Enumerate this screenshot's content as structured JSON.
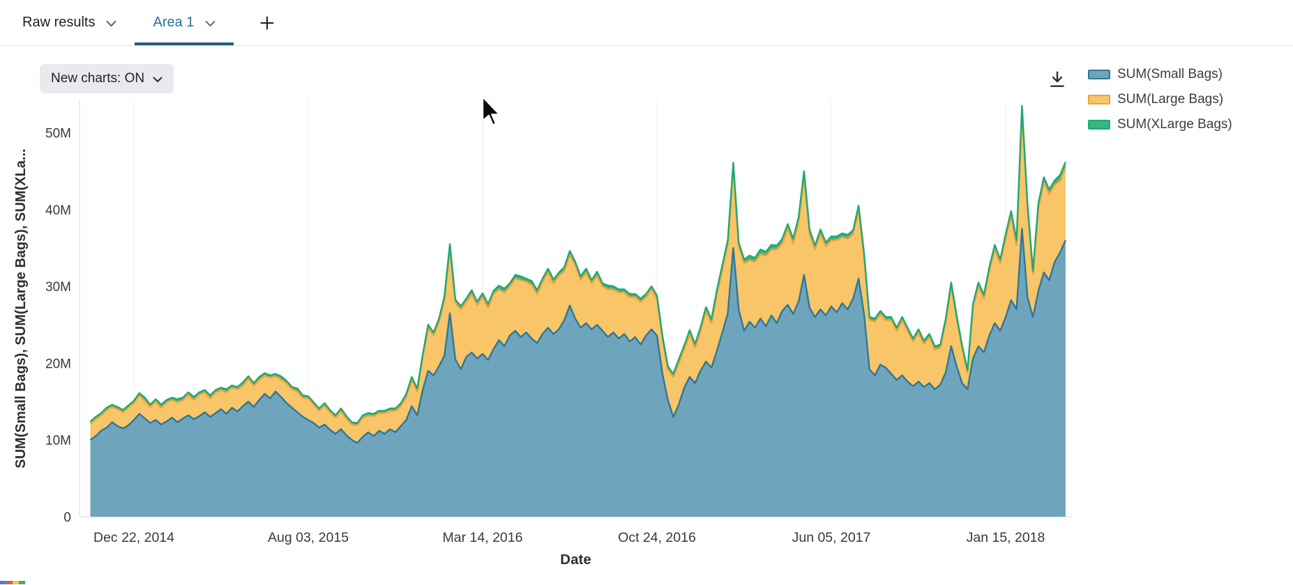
{
  "tab_bar": {
    "tabs": [
      {
        "label": "Raw results",
        "active": false
      },
      {
        "label": "Area 1",
        "active": true
      }
    ],
    "add_button": "+"
  },
  "toolbar": {
    "new_charts_label": "New charts: ON"
  },
  "icons": {
    "tab_dropdown": "chevron-down",
    "new_charts_dropdown": "chevron-down",
    "download": "download-arrow-into-tray",
    "add_tab": "plus"
  },
  "colors": {
    "active_tab_text": "#2a6da8",
    "active_tab_underline": "#1e5a8a",
    "pill_background": "#e9eaed",
    "gridline": "#ededee",
    "axis_line": "#d8d8da",
    "tick_label": "#39393b",
    "axis_title": "#2e2e30"
  },
  "artifacts": {
    "bottom_left_strip_colors": [
      "#4a7fd4",
      "#e05c4b",
      "#f5c242",
      "#3bb273"
    ]
  },
  "chart_data": {
    "type": "area",
    "stacked": true,
    "title": "",
    "xlabel": "Date",
    "ylabel": "SUM(Small Bags), SUM(Large Bags), SUM(XLa...",
    "values_unit": "millions",
    "ylim": [
      0,
      55
    ],
    "grid": {
      "vertical_at_xticks": true,
      "horizontal": false
    },
    "legend_position": "top-right",
    "yticks": [
      {
        "v": 0,
        "label": "0"
      },
      {
        "v": 10,
        "label": "10M"
      },
      {
        "v": 20,
        "label": "20M"
      },
      {
        "v": 30,
        "label": "30M"
      },
      {
        "v": 40,
        "label": "40M"
      },
      {
        "v": 50,
        "label": "50M"
      }
    ],
    "x_unit": "week_index",
    "xticks": [
      {
        "i": 8,
        "label": "Dec 22, 2014"
      },
      {
        "i": 40,
        "label": "Aug 03, 2015"
      },
      {
        "i": 72,
        "label": "Mar 14, 2016"
      },
      {
        "i": 104,
        "label": "Oct 24, 2016"
      },
      {
        "i": 136,
        "label": "Jun 05, 2017"
      },
      {
        "i": 168,
        "label": "Jan 15, 2018"
      }
    ],
    "series": [
      {
        "name": "SUM(Small Bags)",
        "fill": "#6FA5BC",
        "stroke": "#2E7796",
        "values": [
          10.0,
          10.5,
          11.2,
          11.6,
          12.3,
          11.8,
          11.5,
          11.9,
          12.6,
          13.4,
          12.8,
          12.2,
          12.6,
          12.0,
          12.4,
          12.9,
          12.3,
          12.8,
          13.2,
          12.7,
          13.1,
          13.6,
          13.0,
          13.5,
          14.0,
          13.4,
          14.2,
          13.7,
          14.4,
          15.0,
          14.3,
          15.2,
          16.0,
          15.4,
          16.3,
          15.6,
          14.8,
          14.2,
          13.6,
          13.0,
          12.6,
          12.2,
          11.6,
          12.0,
          11.3,
          10.8,
          11.4,
          10.6,
          10.0,
          9.6,
          10.4,
          11.0,
          10.5,
          11.2,
          10.8,
          11.4,
          11.0,
          11.8,
          12.6,
          14.4,
          13.2,
          16.5,
          19.0,
          18.4,
          19.6,
          21.0,
          26.5,
          20.5,
          19.2,
          20.8,
          21.4,
          20.6,
          21.2,
          20.4,
          21.8,
          23.0,
          22.2,
          23.6,
          24.2,
          23.4,
          24.0,
          23.2,
          22.6,
          23.8,
          24.6,
          23.8,
          24.4,
          25.6,
          27.5,
          25.8,
          24.6,
          25.2,
          24.4,
          25.0,
          24.2,
          23.4,
          24.0,
          23.2,
          23.8,
          22.8,
          23.4,
          22.4,
          23.6,
          24.4,
          23.6,
          18.6,
          15.2,
          13.0,
          14.6,
          16.8,
          18.2,
          17.4,
          19.0,
          20.2,
          19.4,
          21.6,
          24.0,
          26.5,
          35.0,
          27.0,
          24.2,
          25.4,
          24.6,
          25.8,
          24.8,
          26.2,
          25.2,
          26.8,
          27.6,
          26.4,
          28.0,
          31.5,
          27.2,
          26.0,
          27.0,
          26.2,
          27.4,
          26.6,
          27.8,
          27.0,
          28.4,
          31.0,
          26.4,
          19.2,
          18.4,
          19.8,
          19.4,
          18.6,
          17.8,
          18.4,
          17.6,
          17.0,
          17.6,
          16.9,
          17.4,
          16.6,
          17.2,
          18.8,
          22.2,
          19.6,
          17.4,
          16.6,
          20.6,
          22.2,
          21.4,
          23.6,
          25.2,
          24.2,
          26.0,
          28.2,
          27.0,
          37.5,
          28.6,
          26.0,
          29.4,
          31.8,
          30.8,
          33.2,
          34.4,
          36.0
        ]
      },
      {
        "name": "SUM(Large Bags)",
        "fill": "#F8C568",
        "stroke": "#ED9F40",
        "values": [
          2.1,
          2.2,
          2.0,
          2.3,
          2.0,
          2.2,
          2.1,
          2.3,
          2.2,
          2.4,
          2.3,
          2.1,
          2.4,
          2.2,
          2.5,
          2.3,
          2.6,
          2.4,
          2.7,
          2.5,
          2.8,
          2.6,
          2.4,
          2.7,
          2.5,
          2.8,
          2.6,
          2.9,
          2.7,
          3.0,
          2.8,
          2.6,
          2.4,
          2.7,
          2.0,
          2.3,
          2.6,
          2.4,
          2.7,
          2.5,
          2.8,
          2.4,
          2.2,
          2.5,
          2.3,
          2.1,
          2.4,
          2.2,
          2.0,
          2.3,
          2.5,
          2.2,
          2.6,
          2.3,
          2.7,
          2.4,
          2.8,
          2.6,
          3.0,
          3.4,
          3.1,
          4.2,
          5.6,
          5.2,
          5.8,
          7.2,
          8.5,
          7.4,
          7.8,
          7.2,
          7.6,
          7.0,
          7.4,
          6.8,
          7.2,
          6.6,
          7.0,
          6.4,
          6.8,
          7.4,
          6.6,
          7.0,
          6.4,
          6.8,
          7.2,
          6.6,
          7.0,
          6.4,
          6.6,
          7.0,
          6.2,
          6.6,
          6.0,
          6.4,
          5.8,
          6.2,
          5.6,
          6.0,
          5.4,
          5.8,
          5.2,
          5.6,
          5.0,
          5.2,
          4.8,
          4.6,
          4.0,
          5.2,
          5.4,
          5.0,
          5.6,
          4.6,
          5.2,
          6.6,
          5.8,
          7.4,
          8.2,
          9.0,
          10.5,
          8.2,
          8.8,
          8.0,
          8.6,
          8.4,
          9.2,
          8.6,
          9.6,
          8.8,
          10.0,
          9.2,
          10.4,
          12.8,
          9.6,
          8.8,
          9.8,
          9.0,
          8.6,
          9.4,
          8.6,
          9.2,
          8.4,
          9.0,
          7.6,
          6.4,
          7.0,
          6.6,
          6.2,
          7.0,
          6.4,
          7.2,
          6.6,
          5.8,
          6.4,
          5.6,
          6.0,
          5.2,
          4.8,
          6.6,
          7.8,
          6.2,
          4.6,
          2.2,
          6.6,
          7.8,
          7.0,
          8.4,
          9.6,
          8.8,
          10.2,
          11.0,
          8.4,
          15.3,
          11.6,
          5.6,
          10.8,
          11.8,
          11.2,
          10.0,
          9.4,
          9.5
        ]
      },
      {
        "name": "SUM(XLarge Bags)",
        "fill": "#35B57F",
        "stroke": "#1FA971",
        "values": [
          0.3,
          0.3,
          0.3,
          0.3,
          0.3,
          0.3,
          0.3,
          0.3,
          0.3,
          0.3,
          0.4,
          0.3,
          0.3,
          0.4,
          0.3,
          0.3,
          0.4,
          0.3,
          0.3,
          0.4,
          0.3,
          0.3,
          0.4,
          0.3,
          0.3,
          0.4,
          0.3,
          0.3,
          0.4,
          0.3,
          0.3,
          0.4,
          0.3,
          0.3,
          0.3,
          0.4,
          0.3,
          0.3,
          0.4,
          0.3,
          0.3,
          0.3,
          0.3,
          0.3,
          0.3,
          0.3,
          0.3,
          0.3,
          0.3,
          0.3,
          0.3,
          0.3,
          0.3,
          0.3,
          0.3,
          0.3,
          0.3,
          0.4,
          0.4,
          0.4,
          0.4,
          0.4,
          0.4,
          0.4,
          0.4,
          0.5,
          0.5,
          0.4,
          0.4,
          0.4,
          0.5,
          0.4,
          0.5,
          0.5,
          0.4,
          0.5,
          0.5,
          0.4,
          0.5,
          0.5,
          0.4,
          0.5,
          0.5,
          0.4,
          0.5,
          0.5,
          0.4,
          0.5,
          0.5,
          0.4,
          0.5,
          0.5,
          0.4,
          0.5,
          0.4,
          0.5,
          0.4,
          0.4,
          0.4,
          0.4,
          0.4,
          0.4,
          0.4,
          0.4,
          0.4,
          0.4,
          0.4,
          0.4,
          0.5,
          0.5,
          0.5,
          0.5,
          0.5,
          0.5,
          0.5,
          0.5,
          0.6,
          0.5,
          0.6,
          0.5,
          0.5,
          0.6,
          0.5,
          0.6,
          0.5,
          0.6,
          0.5,
          0.6,
          0.5,
          0.6,
          0.6,
          0.7,
          0.6,
          0.5,
          0.6,
          0.5,
          0.5,
          0.5,
          0.5,
          0.5,
          0.5,
          0.5,
          0.4,
          0.4,
          0.4,
          0.4,
          0.4,
          0.4,
          0.4,
          0.4,
          0.4,
          0.4,
          0.4,
          0.4,
          0.4,
          0.4,
          0.4,
          0.4,
          0.5,
          0.4,
          0.3,
          0.3,
          0.5,
          0.5,
          0.5,
          0.5,
          0.6,
          0.5,
          0.6,
          0.6,
          0.6,
          0.7,
          0.6,
          0.4,
          0.6,
          0.6,
          0.6,
          0.6,
          0.7,
          0.7
        ]
      }
    ]
  }
}
